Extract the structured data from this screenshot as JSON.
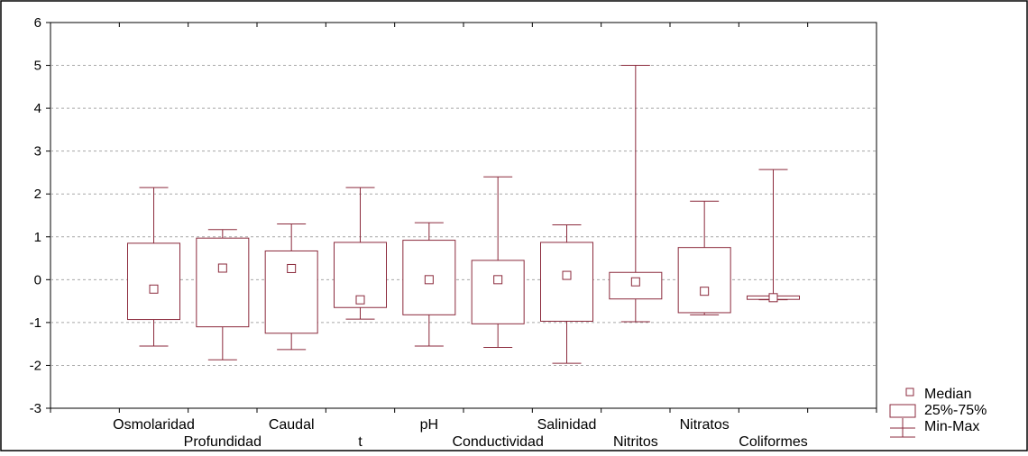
{
  "chart_data": {
    "type": "box",
    "categories": [
      "Osmolaridad",
      "Profundidad",
      "Caudal",
      "t",
      "pH",
      "Conductividad",
      "Salinidad",
      "Nitritos",
      "Nitratos",
      "Coliformes"
    ],
    "series": [
      {
        "name": "Min-Max",
        "min": [
          -1.55,
          -1.87,
          -1.63,
          -0.92,
          -1.55,
          -1.58,
          -1.95,
          -0.98,
          -0.82,
          -0.47
        ],
        "max": [
          2.15,
          1.17,
          1.3,
          2.15,
          1.33,
          2.4,
          1.28,
          5.0,
          1.83,
          2.57
        ]
      },
      {
        "name": "25%-75%",
        "q1": [
          -0.93,
          -1.1,
          -1.25,
          -0.65,
          -0.82,
          -1.03,
          -0.97,
          -0.45,
          -0.77,
          -0.46
        ],
        "q3": [
          0.85,
          0.97,
          0.67,
          0.87,
          0.92,
          0.45,
          0.87,
          0.17,
          0.75,
          -0.38
        ]
      },
      {
        "name": "Median",
        "values": [
          -0.22,
          0.27,
          0.26,
          -0.47,
          0.0,
          0.0,
          0.1,
          -0.05,
          -0.27,
          -0.42
        ]
      }
    ],
    "ylim": [
      -3,
      6
    ],
    "yticks": [
      "-3",
      "-2",
      "-1",
      "0",
      "1",
      "2",
      "3",
      "4",
      "5",
      "6"
    ],
    "grid": true,
    "legend": {
      "placement": "bottom-right",
      "entries": [
        "Median",
        "25%-75%",
        "Min-Max"
      ]
    },
    "colors": {
      "box": "#8b2a3c",
      "grid": "#a8a8a8",
      "frame": "#000000"
    }
  }
}
